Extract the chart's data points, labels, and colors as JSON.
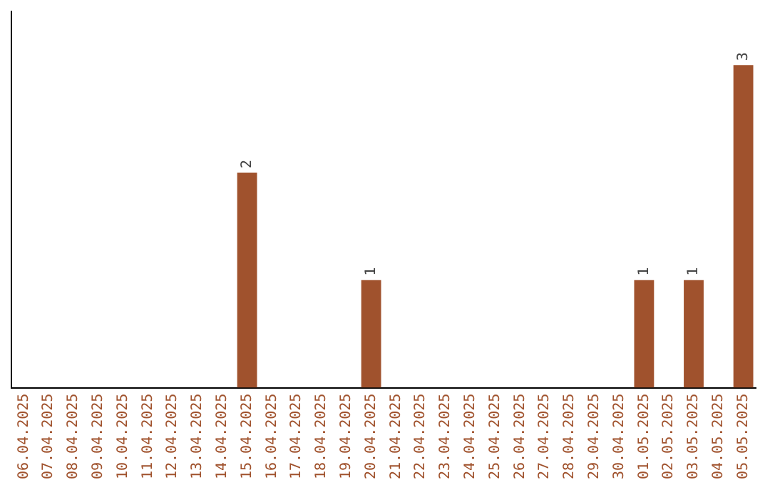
{
  "chart_data": {
    "type": "bar",
    "categories": [
      "06.04.2025",
      "07.04.2025",
      "08.04.2025",
      "09.04.2025",
      "10.04.2025",
      "11.04.2025",
      "12.04.2025",
      "13.04.2025",
      "14.04.2025",
      "15.04.2025",
      "16.04.2025",
      "17.04.2025",
      "18.04.2025",
      "19.04.2025",
      "20.04.2025",
      "21.04.2025",
      "22.04.2025",
      "23.04.2025",
      "24.04.2025",
      "25.04.2025",
      "26.04.2025",
      "27.04.2025",
      "28.04.2025",
      "29.04.2025",
      "30.04.2025",
      "01.05.2025",
      "02.05.2025",
      "03.05.2025",
      "04.05.2025",
      "05.05.2025"
    ],
    "values": [
      0,
      0,
      0,
      0,
      0,
      0,
      0,
      0,
      0,
      2,
      0,
      0,
      0,
      0,
      1,
      0,
      0,
      0,
      0,
      0,
      0,
      0,
      0,
      0,
      0,
      1,
      0,
      1,
      0,
      3
    ],
    "value_labels": [
      null,
      null,
      null,
      null,
      null,
      null,
      null,
      null,
      null,
      "2",
      null,
      null,
      null,
      null,
      "1",
      null,
      null,
      null,
      null,
      null,
      null,
      null,
      null,
      null,
      null,
      "1",
      null,
      "1",
      null,
      "3"
    ],
    "color": "#a0522d",
    "grid": false,
    "legend": false,
    "tick_labels": "x"
  }
}
